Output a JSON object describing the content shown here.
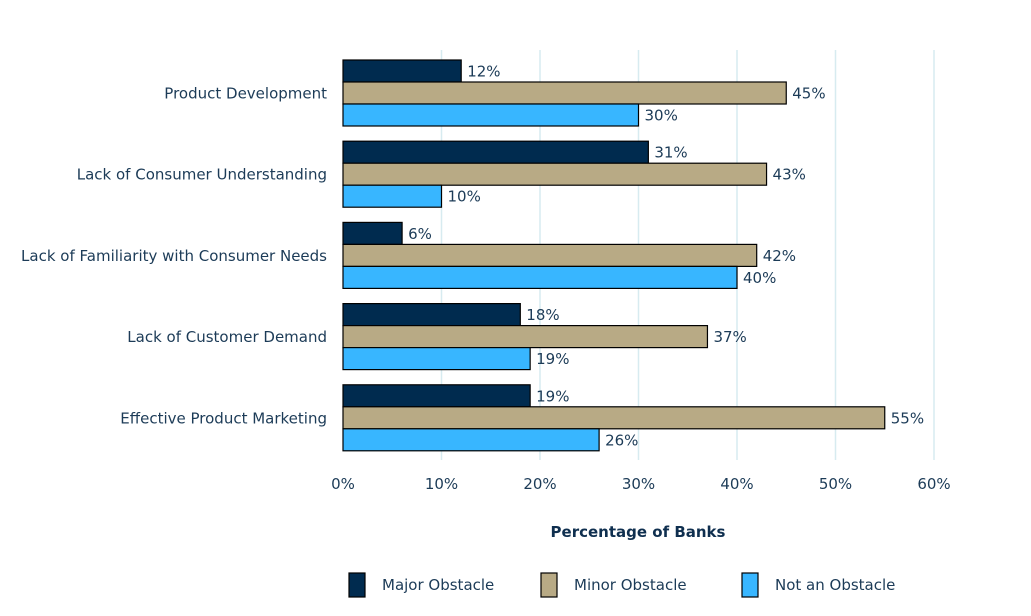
{
  "chart_data": {
    "type": "bar",
    "orientation": "horizontal",
    "categories": [
      "Product Development",
      "Lack of Consumer Understanding",
      "Lack of Familiarity with Consumer Needs",
      "Lack of Customer Demand",
      "Effective Product Marketing"
    ],
    "series": [
      {
        "name": "Major Obstacle",
        "color": "#002b4f",
        "values": [
          12,
          31,
          6,
          18,
          19
        ]
      },
      {
        "name": "Minor Obstacle",
        "color": "#b8aa85",
        "values": [
          45,
          43,
          42,
          37,
          55
        ]
      },
      {
        "name": "Not an Obstacle",
        "color": "#38b6ff",
        "values": [
          30,
          10,
          40,
          19,
          26
        ]
      }
    ],
    "xlabel": "Percentage of Banks",
    "xlim": [
      0,
      60
    ],
    "xticks": [
      0,
      10,
      20,
      30,
      40,
      50,
      60
    ],
    "tick_labels": [
      "0%",
      "10%",
      "20%",
      "30%",
      "40%",
      "50%",
      "60%"
    ],
    "value_suffix": "%",
    "grid": true,
    "grid_color": "#d7ebf0",
    "bar_outline_color": "#000000",
    "legend_position": "bottom"
  }
}
